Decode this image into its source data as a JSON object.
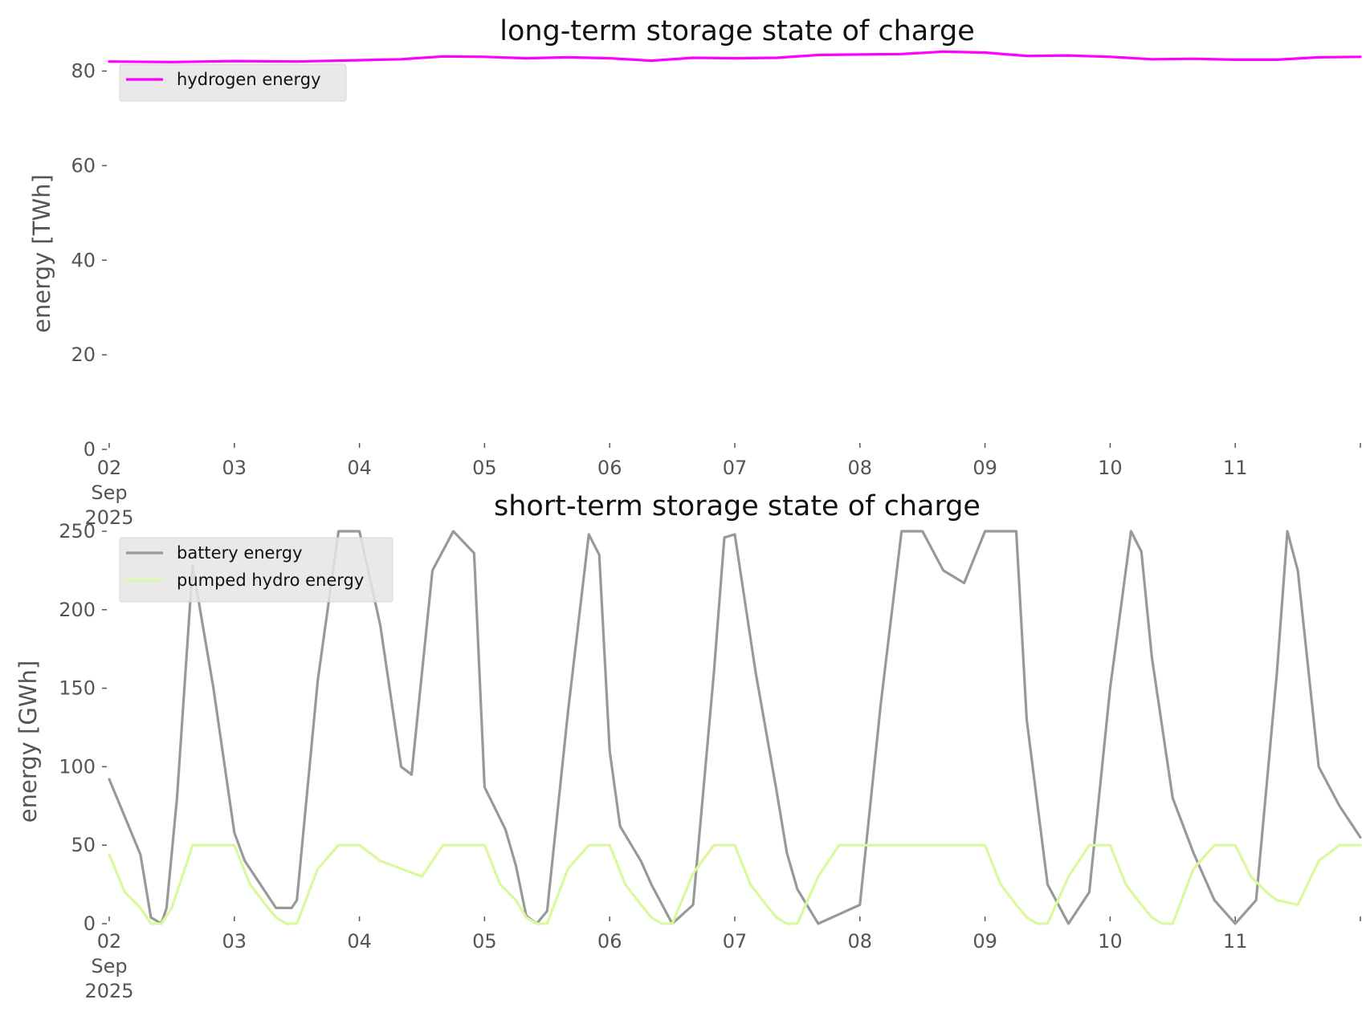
{
  "chart_data": [
    {
      "type": "line",
      "title": "long-term storage state of charge",
      "xlabel": "",
      "ylabel": "energy [TWh]",
      "ylim": [
        0,
        84.5
      ],
      "yticks": [
        0,
        20,
        40,
        60,
        80
      ],
      "xlim": [
        "2025-09-02",
        "2025-09-12"
      ],
      "xtick_labels": [
        "02\nSep\n2025",
        "03",
        "04",
        "05",
        "06",
        "07",
        "08",
        "09",
        "10",
        "11"
      ],
      "grid": false,
      "legend": "top-left",
      "series": [
        {
          "name": "hydrogen energy",
          "color": "#ff00ff",
          "x": [
            "2025-09-02 00:00",
            "2025-09-02 12:00",
            "2025-09-03 00:00",
            "2025-09-03 12:00",
            "2025-09-04 00:00",
            "2025-09-04 08:00",
            "2025-09-04 16:00",
            "2025-09-05 00:00",
            "2025-09-05 08:00",
            "2025-09-05 16:00",
            "2025-09-06 00:00",
            "2025-09-06 08:00",
            "2025-09-06 16:00",
            "2025-09-07 00:00",
            "2025-09-07 08:00",
            "2025-09-07 16:00",
            "2025-09-08 00:00",
            "2025-09-08 08:00",
            "2025-09-08 16:00",
            "2025-09-09 00:00",
            "2025-09-09 08:00",
            "2025-09-09 16:00",
            "2025-09-10 00:00",
            "2025-09-10 08:00",
            "2025-09-10 16:00",
            "2025-09-11 00:00",
            "2025-09-11 08:00",
            "2025-09-11 16:00",
            "2025-09-12 00:00"
          ],
          "y": [
            82.0,
            81.9,
            82.1,
            82.0,
            82.3,
            82.5,
            83.1,
            83.0,
            82.7,
            82.9,
            82.7,
            82.2,
            82.8,
            82.7,
            82.8,
            83.4,
            83.5,
            83.6,
            84.1,
            83.9,
            83.2,
            83.3,
            83.0,
            82.5,
            82.6,
            82.4,
            82.4,
            82.9,
            83.0
          ]
        }
      ]
    },
    {
      "type": "line",
      "title": "short-term storage state of charge",
      "xlabel": "",
      "ylabel": "energy [GWh]",
      "ylim": [
        0,
        251
      ],
      "yticks": [
        0,
        50,
        100,
        150,
        200,
        250
      ],
      "xlim": [
        "2025-09-02",
        "2025-09-12"
      ],
      "xtick_labels": [
        "02\nSep\n2025",
        "03",
        "04",
        "05",
        "06",
        "07",
        "08",
        "09",
        "10",
        "11"
      ],
      "grid": false,
      "legend": "top-left",
      "series": [
        {
          "name": "battery energy",
          "color": "#999999",
          "x": [
            "2025-09-02 00:00",
            "2025-09-02 03:00",
            "2025-09-02 06:00",
            "2025-09-02 08:00",
            "2025-09-02 10:00",
            "2025-09-02 11:00",
            "2025-09-02 13:00",
            "2025-09-02 16:00",
            "2025-09-02 20:00",
            "2025-09-03 00:00",
            "2025-09-03 02:00",
            "2025-09-03 05:00",
            "2025-09-03 08:00",
            "2025-09-03 11:00",
            "2025-09-03 12:00",
            "2025-09-03 16:00",
            "2025-09-03 20:00",
            "2025-09-04 00:00",
            "2025-09-04 04:00",
            "2025-09-04 08:00",
            "2025-09-04 10:00",
            "2025-09-04 12:00",
            "2025-09-04 14:00",
            "2025-09-04 18:00",
            "2025-09-04 22:00",
            "2025-09-05 00:00",
            "2025-09-05 04:00",
            "2025-09-05 06:00",
            "2025-09-05 08:00",
            "2025-09-05 10:00",
            "2025-09-05 12:00",
            "2025-09-05 16:00",
            "2025-09-05 20:00",
            "2025-09-05 22:00",
            "2025-09-06 00:00",
            "2025-09-06 02:00",
            "2025-09-06 06:00",
            "2025-09-06 08:00",
            "2025-09-06 12:00",
            "2025-09-06 16:00",
            "2025-09-06 20:00",
            "2025-09-06 22:00",
            "2025-09-07 00:00",
            "2025-09-07 04:00",
            "2025-09-07 08:00",
            "2025-09-07 10:00",
            "2025-09-07 12:00",
            "2025-09-07 16:00",
            "2025-09-08 00:00",
            "2025-09-08 04:00",
            "2025-09-08 08:00",
            "2025-09-08 12:00",
            "2025-09-08 16:00",
            "2025-09-08 20:00",
            "2025-09-09 00:00",
            "2025-09-09 06:00",
            "2025-09-09 08:00",
            "2025-09-09 12:00",
            "2025-09-09 16:00",
            "2025-09-09 20:00",
            "2025-09-10 00:00",
            "2025-09-10 04:00",
            "2025-09-10 06:00",
            "2025-09-10 08:00",
            "2025-09-10 12:00",
            "2025-09-10 16:00",
            "2025-09-10 20:00",
            "2025-09-11 00:00",
            "2025-09-11 04:00",
            "2025-09-11 08:00",
            "2025-09-11 10:00",
            "2025-09-11 12:00",
            "2025-09-11 16:00",
            "2025-09-11 20:00",
            "2025-09-12 00:00"
          ],
          "y": [
            92,
            68,
            44,
            4,
            0,
            10,
            80,
            228,
            150,
            58,
            40,
            25,
            10,
            10,
            15,
            155,
            250,
            250,
            190,
            100,
            95,
            160,
            225,
            250,
            236,
            87,
            60,
            37,
            5,
            0,
            8,
            135,
            248,
            235,
            110,
            62,
            40,
            25,
            0,
            12,
            160,
            246,
            248,
            160,
            85,
            45,
            22,
            0,
            12,
            140,
            250,
            250,
            225,
            217,
            250,
            250,
            130,
            25,
            0,
            20,
            150,
            250,
            237,
            170,
            80,
            45,
            15,
            0,
            15,
            160,
            250,
            225,
            100,
            75,
            55
          ]
        },
        {
          "name": "pumped hydro energy",
          "color": "#d9f99d",
          "x": [
            "2025-09-02 00:00",
            "2025-09-02 03:00",
            "2025-09-02 06:00",
            "2025-09-02 08:00",
            "2025-09-02 10:00",
            "2025-09-02 12:00",
            "2025-09-02 16:00",
            "2025-09-02 20:00",
            "2025-09-03 00:00",
            "2025-09-03 03:00",
            "2025-09-03 06:00",
            "2025-09-03 08:00",
            "2025-09-03 10:00",
            "2025-09-03 12:00",
            "2025-09-03 16:00",
            "2025-09-03 20:00",
            "2025-09-04 00:00",
            "2025-09-04 04:00",
            "2025-09-04 08:00",
            "2025-09-04 12:00",
            "2025-09-04 16:00",
            "2025-09-04 20:00",
            "2025-09-05 00:00",
            "2025-09-05 03:00",
            "2025-09-05 06:00",
            "2025-09-05 08:00",
            "2025-09-05 10:00",
            "2025-09-05 12:00",
            "2025-09-05 16:00",
            "2025-09-05 20:00",
            "2025-09-06 00:00",
            "2025-09-06 03:00",
            "2025-09-06 06:00",
            "2025-09-06 08:00",
            "2025-09-06 10:00",
            "2025-09-06 12:00",
            "2025-09-06 16:00",
            "2025-09-06 20:00",
            "2025-09-07 00:00",
            "2025-09-07 03:00",
            "2025-09-07 06:00",
            "2025-09-07 08:00",
            "2025-09-07 10:00",
            "2025-09-07 12:00",
            "2025-09-07 16:00",
            "2025-09-07 20:00",
            "2025-09-08 00:00",
            "2025-09-08 12:00",
            "2025-09-09 00:00",
            "2025-09-09 03:00",
            "2025-09-09 06:00",
            "2025-09-09 08:00",
            "2025-09-09 10:00",
            "2025-09-09 12:00",
            "2025-09-09 16:00",
            "2025-09-09 20:00",
            "2025-09-10 00:00",
            "2025-09-10 03:00",
            "2025-09-10 06:00",
            "2025-09-10 08:00",
            "2025-09-10 10:00",
            "2025-09-10 12:00",
            "2025-09-10 16:00",
            "2025-09-10 20:00",
            "2025-09-11 00:00",
            "2025-09-11 03:00",
            "2025-09-11 06:00",
            "2025-09-11 08:00",
            "2025-09-11 12:00",
            "2025-09-11 16:00",
            "2025-09-11 20:00",
            "2025-09-12 00:00"
          ],
          "y": [
            44,
            20,
            10,
            0,
            0,
            10,
            50,
            50,
            50,
            25,
            12,
            4,
            0,
            0,
            35,
            50,
            50,
            40,
            35,
            30,
            50,
            50,
            50,
            25,
            15,
            4,
            0,
            0,
            35,
            50,
            50,
            25,
            12,
            4,
            0,
            0,
            32,
            50,
            50,
            25,
            12,
            4,
            0,
            0,
            30,
            50,
            50,
            50,
            50,
            25,
            12,
            4,
            0,
            0,
            30,
            50,
            50,
            25,
            12,
            4,
            0,
            0,
            35,
            50,
            50,
            30,
            20,
            15,
            12,
            40,
            50,
            50
          ]
        }
      ]
    }
  ]
}
